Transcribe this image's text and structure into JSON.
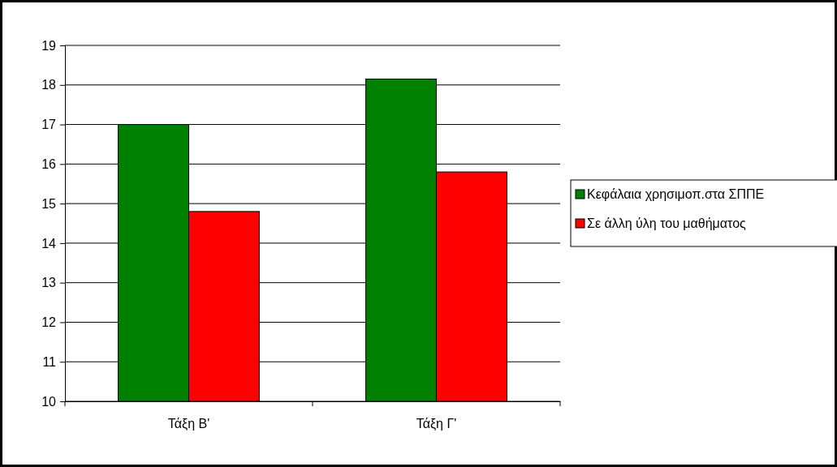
{
  "chart_data": {
    "type": "bar",
    "categories": [
      "Τάξη Β'",
      "Τάξη Γ'"
    ],
    "series": [
      {
        "name": "Κεφάλαια χρησιμοπ.στα ΣΠΠΕ",
        "color": "#008000",
        "values": [
          17.0,
          18.15
        ]
      },
      {
        "name": "Σε άλλη  ύλη του μαθήματος",
        "color": "#ff0000",
        "values": [
          14.8,
          15.8
        ]
      }
    ],
    "ylim": [
      10,
      19
    ],
    "yticks": [
      10,
      11,
      12,
      13,
      14,
      15,
      16,
      17,
      18,
      19
    ],
    "grid": "y",
    "legend": "right"
  }
}
